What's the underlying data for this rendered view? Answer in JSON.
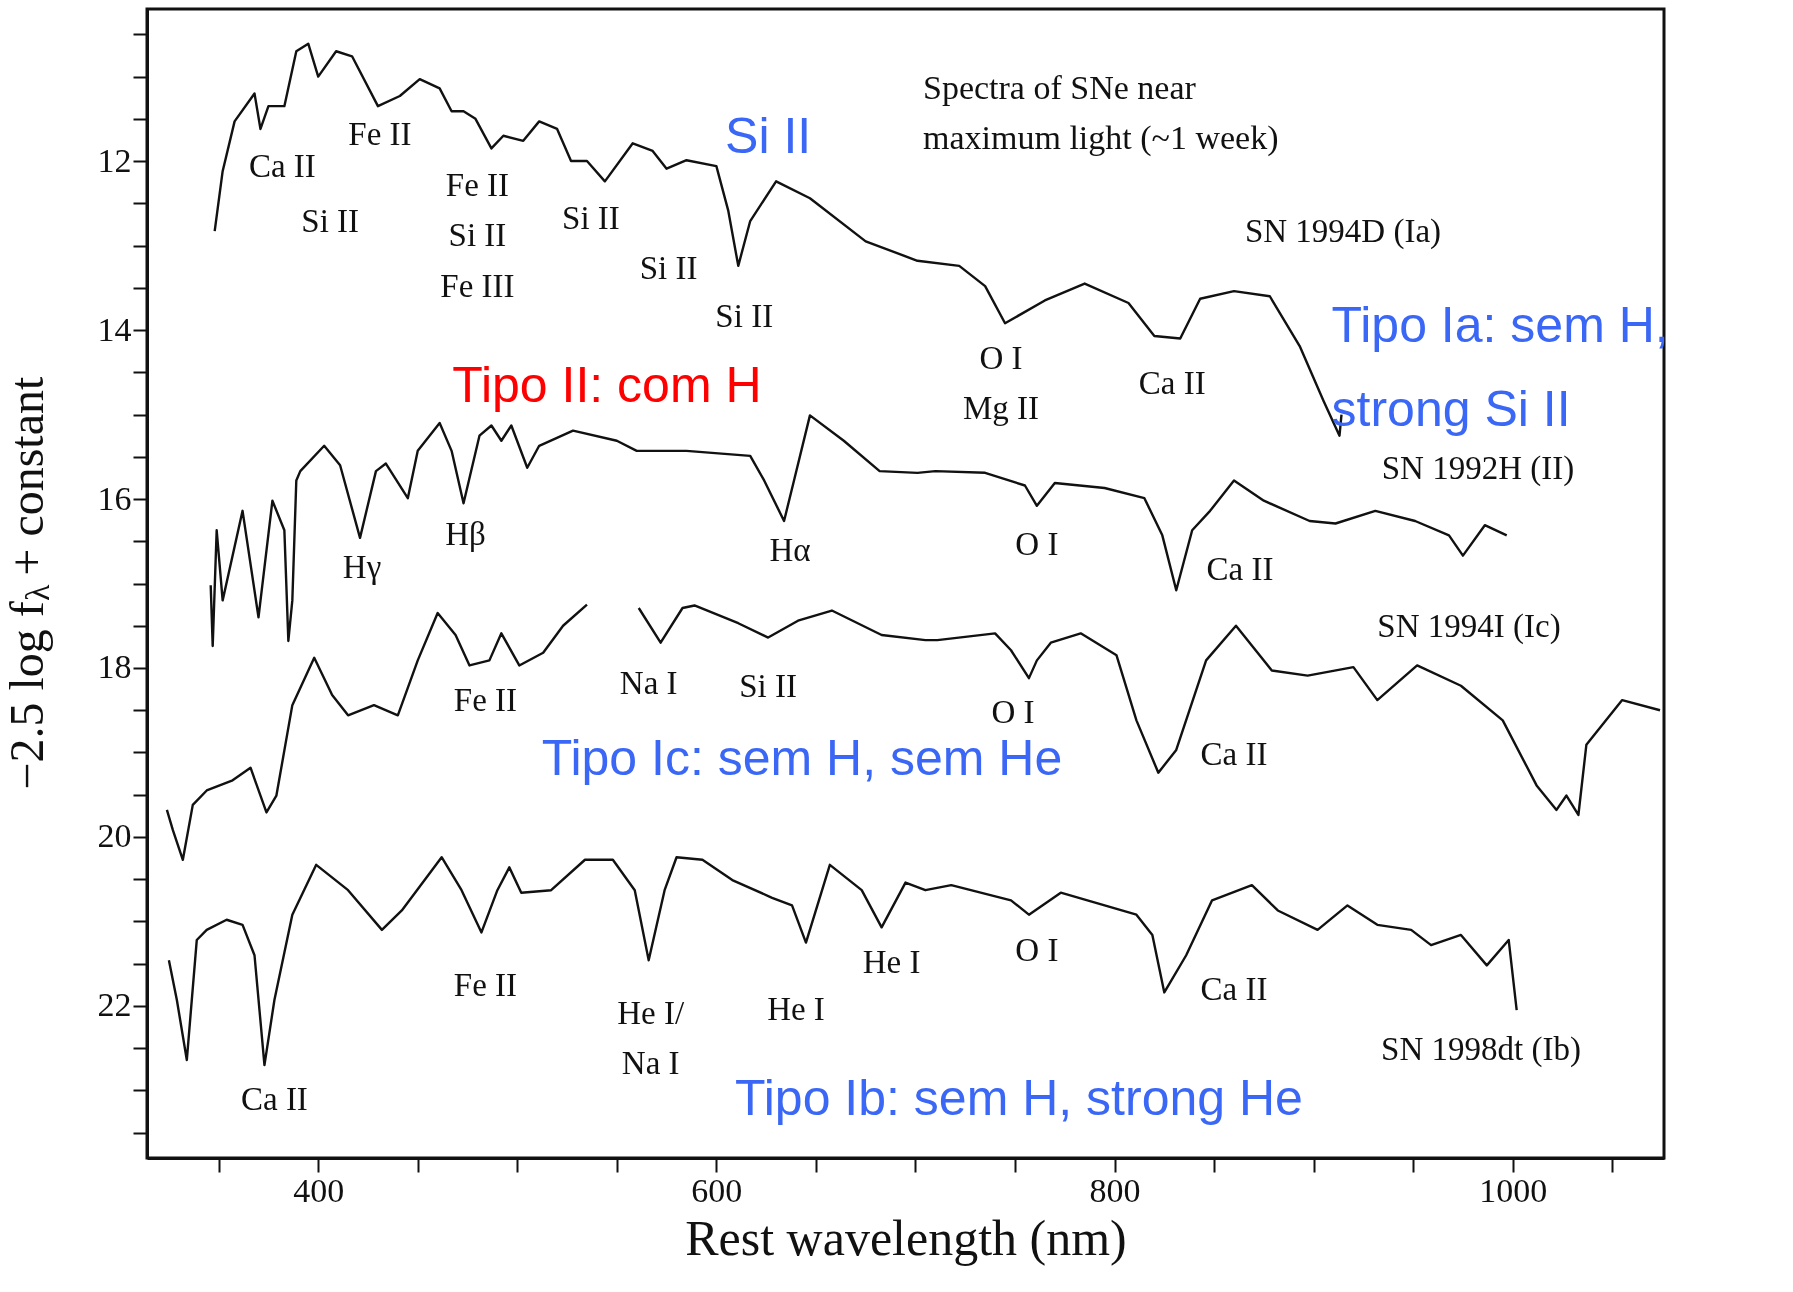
{
  "chart_data": {
    "type": "line",
    "title": "Spectra of SNe near\nmaximum light (~1 week)",
    "xlabel": "Rest wavelength (nm)",
    "ylabel": "−2.5 log f$_{λ}$ + constant",
    "xlim": [
      314,
      1076
    ],
    "ylim": [
      23.8,
      10.2
    ],
    "xticks": [
      {
        "value": 350,
        "label": null
      },
      400,
      {
        "value": 450,
        "label": null
      },
      {
        "value": 500,
        "label": null
      },
      {
        "value": 550,
        "label": null
      },
      600,
      {
        "value": 650,
        "label": null
      },
      {
        "value": 700,
        "label": null
      },
      {
        "value": 750,
        "label": null
      },
      800,
      {
        "value": 850,
        "label": null
      },
      {
        "value": 900,
        "label": null
      },
      {
        "value": 950,
        "label": null
      },
      1000,
      {
        "value": 1050,
        "label": null
      }
    ],
    "yticks": [
      {
        "value": 10.5,
        "label": null
      },
      {
        "value": 11,
        "label": null
      },
      {
        "value": 11.5,
        "label": null
      },
      12,
      {
        "value": 12.5,
        "label": null
      },
      {
        "value": 13,
        "label": null
      },
      {
        "value": 13.5,
        "label": null
      },
      14,
      {
        "value": 14.5,
        "label": null
      },
      {
        "value": 15,
        "label": null
      },
      {
        "value": 15.5,
        "label": null
      },
      16,
      {
        "value": 16.5,
        "label": null
      },
      {
        "value": 17,
        "label": null
      },
      {
        "value": 17.5,
        "label": null
      },
      18,
      {
        "value": 18.5,
        "label": null
      },
      {
        "value": 19,
        "label": null
      },
      {
        "value": 19.5,
        "label": null
      },
      20,
      {
        "value": 20.5,
        "label": null
      },
      {
        "value": 21,
        "label": null
      },
      {
        "value": 21.5,
        "label": null
      },
      22,
      {
        "value": 22.5,
        "label": null
      },
      {
        "value": 23,
        "label": null
      },
      {
        "value": 23.5,
        "label": null
      }
    ],
    "grid": false,
    "legend": false,
    "line_style": "solid",
    "series": [
      {
        "name": "SN 1994D (Ia)",
        "color": "#111111",
        "x": [
          348,
          352,
          358,
          368,
          371,
          375,
          383,
          389,
          395,
          400,
          409,
          417,
          430,
          441,
          451,
          461,
          467,
          473,
          479,
          487,
          493,
          503,
          511,
          520,
          527,
          535,
          544,
          558,
          568,
          575,
          585,
          600,
          606,
          611,
          617,
          630,
          647,
          675,
          701,
          722,
          735,
          745,
          765,
          785,
          807,
          820,
          833,
          843,
          860,
          878,
          893,
          905,
          913,
          914
        ],
        "values": [
          12.83,
          12.12,
          11.53,
          11.2,
          11.62,
          11.35,
          11.35,
          10.7,
          10.61,
          11.0,
          10.7,
          10.76,
          11.35,
          11.23,
          11.03,
          11.14,
          11.41,
          11.41,
          11.5,
          11.85,
          11.7,
          11.76,
          11.53,
          11.62,
          12.0,
          12.0,
          12.24,
          11.79,
          11.88,
          12.09,
          11.99,
          12.06,
          12.59,
          13.24,
          12.71,
          12.24,
          12.44,
          12.95,
          13.18,
          13.24,
          13.48,
          13.92,
          13.65,
          13.45,
          13.68,
          14.07,
          14.1,
          13.63,
          13.54,
          13.6,
          14.19,
          14.84,
          15.25,
          15.0
        ]
      },
      {
        "name": "SN 1992H (II)",
        "color": "#111111",
        "x": [
          346,
          347,
          349,
          352,
          362,
          370,
          377,
          383,
          385,
          387,
          389,
          391,
          403,
          411,
          421,
          429,
          434,
          445,
          450,
          461,
          467,
          473,
          481,
          487,
          492,
          497,
          505,
          511,
          528,
          550,
          560,
          585,
          617,
          624,
          634,
          639,
          647,
          664,
          682,
          701,
          710,
          735,
          755,
          761,
          770,
          795,
          815,
          824,
          831,
          839,
          848,
          860,
          875,
          898,
          911,
          931,
          951,
          968,
          975,
          986,
          997
        ],
        "values": [
          17.02,
          17.74,
          16.37,
          17.2,
          16.14,
          17.4,
          16.02,
          16.37,
          17.68,
          17.2,
          15.78,
          15.67,
          15.37,
          15.6,
          16.46,
          15.67,
          15.58,
          15.99,
          15.43,
          15.1,
          15.43,
          16.05,
          15.25,
          15.13,
          15.31,
          15.13,
          15.63,
          15.37,
          15.19,
          15.31,
          15.43,
          15.43,
          15.49,
          15.78,
          16.26,
          15.78,
          15.01,
          15.31,
          15.67,
          15.69,
          15.67,
          15.69,
          15.84,
          16.08,
          15.81,
          15.87,
          15.99,
          16.43,
          17.08,
          16.37,
          16.14,
          15.78,
          16.02,
          16.26,
          16.29,
          16.14,
          16.26,
          16.43,
          16.67,
          16.31,
          16.43
        ]
      },
      {
        "name": "SN 1994I (Ic)",
        "color": "#111111",
        "x": [
          324,
          327,
          332,
          337,
          344,
          357,
          366,
          374,
          379,
          387,
          398,
          407,
          415,
          428,
          440,
          450,
          460,
          469,
          476,
          486,
          492,
          501,
          513,
          523,
          535,
          548,
          561,
          572,
          583,
          589,
          611,
          626,
          641,
          658,
          683,
          705,
          711,
          740,
          748,
          757,
          761,
          768,
          783,
          801,
          811,
          822,
          831,
          846,
          861,
          879,
          897,
          920,
          932,
          952,
          974,
          995,
          1012,
          1022,
          1027,
          1033,
          1037,
          1055,
          1074
        ],
        "values": [
          19.68,
          19.92,
          20.27,
          19.62,
          19.45,
          19.33,
          19.18,
          19.71,
          19.51,
          18.44,
          17.88,
          18.32,
          18.56,
          18.44,
          18.56,
          17.91,
          17.35,
          17.61,
          17.97,
          17.91,
          17.59,
          17.97,
          17.82,
          17.5,
          17.25,
          null,
          17.29,
          17.7,
          17.29,
          17.26,
          17.47,
          17.64,
          17.44,
          17.32,
          17.61,
          17.67,
          17.67,
          17.59,
          17.79,
          18.12,
          17.91,
          17.7,
          17.59,
          17.85,
          18.62,
          19.24,
          18.97,
          17.91,
          17.5,
          18.03,
          18.09,
          17.99,
          18.38,
          17.97,
          18.21,
          18.62,
          19.39,
          19.68,
          19.51,
          19.74,
          18.91,
          18.38,
          18.5
        ]
      },
      {
        "name": "SN 1998dt (Ib)",
        "color": "#111111",
        "x": [
          325,
          329,
          334,
          339,
          344,
          354,
          362,
          368,
          373,
          378,
          387,
          399,
          415,
          432,
          442,
          462,
          472,
          482,
          490,
          496,
          502,
          517,
          534,
          548,
          559,
          566,
          574,
          580,
          593,
          608,
          628,
          638,
          645,
          657,
          673,
          683,
          695,
          705,
          718,
          748,
          757,
          773,
          811,
          819,
          825,
          836,
          849,
          869,
          882,
          902,
          917,
          932,
          949,
          959,
          974,
          987,
          998,
          1002
        ],
        "values": [
          21.46,
          21.93,
          22.64,
          21.22,
          21.1,
          20.98,
          21.04,
          21.4,
          22.7,
          21.93,
          20.92,
          20.33,
          20.63,
          21.1,
          20.87,
          20.24,
          20.63,
          21.13,
          20.63,
          20.36,
          20.66,
          20.63,
          20.27,
          20.27,
          20.63,
          21.46,
          20.63,
          20.24,
          20.27,
          20.51,
          20.72,
          20.81,
          21.25,
          20.33,
          20.63,
          21.07,
          20.54,
          20.63,
          20.57,
          20.75,
          20.92,
          20.66,
          20.92,
          21.16,
          21.84,
          21.4,
          20.75,
          20.57,
          20.87,
          21.1,
          20.81,
          21.04,
          21.1,
          21.28,
          21.16,
          21.52,
          21.22,
          22.05
        ]
      }
    ],
    "annotations": [
      "Ca II",
      "Fe II",
      "Si II",
      "Fe II",
      "Si II",
      "Fe III",
      "Si II",
      "Si II",
      "Si II",
      "O I",
      "Mg II",
      "Ca II",
      "Hγ",
      "Hβ",
      "Hα",
      "O I",
      "Ca II",
      "Fe II",
      "Na I",
      "Si II",
      "O I",
      "Ca II",
      "Ca II",
      "Fe II",
      "He I/\nNa I",
      "He I",
      "He I",
      "O I",
      "Ca II",
      "Si II",
      "Tipo II: com H",
      "Tipo Ia: sem H,\nstrong Si II",
      "Tipo Ic: sem H, sem He",
      "Tipo Ib:  sem H, strong He"
    ]
  }
}
